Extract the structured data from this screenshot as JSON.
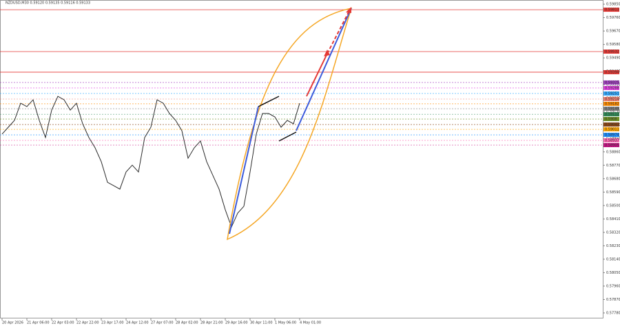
{
  "chart_data": {
    "type": "line",
    "title": "NZDUSD,M30  0.59120 0.59135 0.59116 0.59133",
    "categories": [
      "20 Apr 2026",
      null,
      null,
      null,
      "21 Apr 06:00",
      null,
      null,
      null,
      "22 Apr 03:00",
      null,
      null,
      null,
      "22 Apr 22:00",
      null,
      null,
      null,
      "23 Apr 17:00",
      null,
      null,
      null,
      "24 Apr 12:00",
      null,
      null,
      null,
      "27 Apr 07:00",
      null,
      null,
      null,
      "28 Apr 02:00",
      null,
      null,
      null,
      "28 Apr 21:00",
      null,
      null,
      null,
      "29 Apr 16:00",
      null,
      null,
      null,
      "30 Apr 11:00",
      null,
      null,
      null,
      "1 May 06:00",
      null,
      null,
      null,
      "4 May 01:00"
    ],
    "series": [
      {
        "name": "NZDUSD",
        "color": "#2a2a2a",
        "values": [
          0.58979,
          0.59025,
          0.59071,
          0.59186,
          0.59163,
          0.59209,
          0.59071,
          0.58956,
          0.5914,
          0.59232,
          0.59209,
          0.5914,
          0.59186,
          0.59048,
          0.58956,
          0.58887,
          0.58794,
          0.58656,
          0.58633,
          0.5861,
          0.58725,
          0.58771,
          0.58725,
          0.58956,
          0.59025,
          0.59209,
          0.59186,
          0.59117,
          0.59071,
          0.59002,
          0.58817,
          0.58887,
          0.58933,
          0.58794,
          0.58702,
          0.5861,
          0.58472,
          0.58356,
          0.58449,
          0.58495,
          0.58725,
          0.58979,
          0.59117,
          0.59117,
          0.59094,
          0.59025,
          0.59071,
          0.59048,
          0.59186
        ]
      }
    ],
    "ylim": [
      0.57743,
      0.59878
    ],
    "yticks": [
      {
        "value": 0.5778,
        "label": "0.57780"
      },
      {
        "value": 0.5787,
        "label": "0.57870"
      },
      {
        "value": 0.5796,
        "label": "0.57960"
      },
      {
        "value": 0.5805,
        "label": "0.58050"
      },
      {
        "value": 0.5814,
        "label": "0.58140"
      },
      {
        "value": 0.5823,
        "label": "0.58230"
      },
      {
        "value": 0.5832,
        "label": "0.58320"
      },
      {
        "value": 0.5841,
        "label": "0.58410"
      },
      {
        "value": 0.585,
        "label": "0.58500"
      },
      {
        "value": 0.5859,
        "label": "0.58590"
      },
      {
        "value": 0.5868,
        "label": "0.58680"
      },
      {
        "value": 0.5877,
        "label": "0.58770"
      },
      {
        "value": 0.5886,
        "label": "0.58860"
      },
      {
        "value": 0.5895,
        "label": "0.58950"
      },
      {
        "value": 0.5904,
        "label": "0.59040"
      },
      {
        "value": 0.5913,
        "label": "0.59130"
      },
      {
        "value": 0.5922,
        "label": "0.59220"
      },
      {
        "value": 0.5931,
        "label": "0.59310"
      },
      {
        "value": 0.594,
        "label": "0.59400"
      },
      {
        "value": 0.5949,
        "label": "0.59490"
      },
      {
        "value": 0.5958,
        "label": "0.59580"
      },
      {
        "value": 0.5967,
        "label": "0.59670"
      },
      {
        "value": 0.5976,
        "label": "0.59760"
      },
      {
        "value": 0.5985,
        "label": "0.59850"
      }
    ],
    "levels": [
      {
        "price": 0.59813,
        "color": "#e53935",
        "style": "solid"
      },
      {
        "price": 0.59532,
        "color": "#e53935",
        "style": "solid"
      },
      {
        "price": 0.59394,
        "color": "#e53935",
        "style": "solid"
      },
      {
        "price": 0.59325,
        "color": "#a040c0",
        "style": "dotted"
      },
      {
        "price": 0.59288,
        "color": "#e040e0",
        "style": "dotted"
      },
      {
        "price": 0.59251,
        "color": "#33aaff",
        "style": "dotted"
      },
      {
        "price": 0.59214,
        "color": "#f08070",
        "style": "dotted"
      },
      {
        "price": 0.59182,
        "color": "#ff8c00",
        "style": "dotted"
      },
      {
        "price": 0.59149,
        "color": "#808080",
        "style": "dotted"
      },
      {
        "price": 0.59112,
        "color": "#2e8b57",
        "style": "dotted"
      },
      {
        "price": 0.5908,
        "color": "#6b8e23",
        "style": "dotted"
      },
      {
        "price": 0.59043,
        "color": "#8b4513",
        "style": "dotted"
      },
      {
        "price": 0.59011,
        "color": "#ffa500",
        "style": "dotted"
      },
      {
        "price": 0.58974,
        "color": "#1e90ff",
        "style": "dotted"
      },
      {
        "price": 0.58937,
        "color": "#ff69b4",
        "style": "dotted"
      },
      {
        "price": 0.58905,
        "color": "#c71585",
        "style": "dotted"
      }
    ]
  }
}
